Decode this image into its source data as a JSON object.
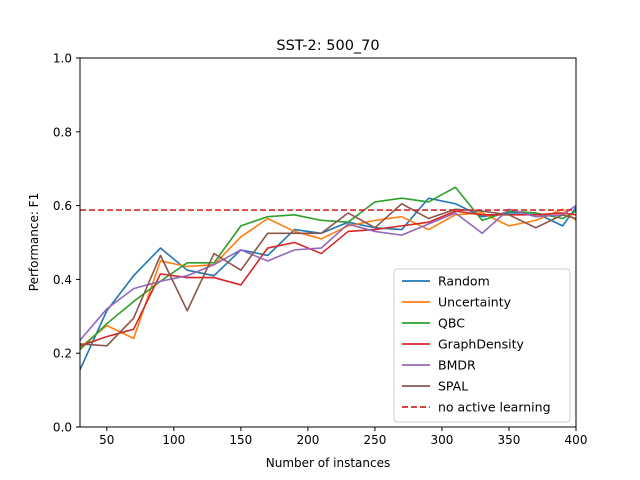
{
  "chart_data": {
    "type": "line",
    "title": "SST-2: 500_70",
    "xlabel": "Number of instances",
    "ylabel": "Performance: F1",
    "xlim": [
      30,
      400
    ],
    "ylim": [
      0.0,
      1.0
    ],
    "xticks": [
      50,
      100,
      150,
      200,
      250,
      300,
      350,
      400
    ],
    "yticks": [
      0.0,
      0.2,
      0.4,
      0.6,
      0.8,
      1.0
    ],
    "xtick_labels": [
      "50",
      "100",
      "150",
      "200",
      "250",
      "300",
      "350",
      "400"
    ],
    "ytick_labels": [
      "0.0",
      "0.2",
      "0.4",
      "0.6",
      "0.8",
      "1.0"
    ],
    "grid": false,
    "legend_position": "lower-right",
    "x": [
      30,
      50,
      70,
      90,
      110,
      130,
      150,
      170,
      190,
      210,
      230,
      250,
      270,
      290,
      310,
      330,
      350,
      370,
      390,
      400
    ],
    "series": [
      {
        "name": "Random",
        "color": "#1f77b4",
        "values": [
          0.155,
          0.315,
          0.41,
          0.485,
          0.425,
          0.41,
          0.48,
          0.465,
          0.535,
          0.525,
          0.555,
          0.54,
          0.535,
          0.62,
          0.605,
          0.57,
          0.58,
          0.58,
          0.545,
          0.595
        ]
      },
      {
        "name": "Uncertainty",
        "color": "#ff7f0e",
        "values": [
          0.215,
          0.275,
          0.24,
          0.45,
          0.435,
          0.44,
          0.515,
          0.565,
          0.53,
          0.51,
          0.545,
          0.56,
          0.57,
          0.535,
          0.575,
          0.58,
          0.545,
          0.56,
          0.59,
          0.56
        ]
      },
      {
        "name": "QBC",
        "color": "#2ca02c",
        "values": [
          0.21,
          0.28,
          0.34,
          0.395,
          0.445,
          0.445,
          0.545,
          0.57,
          0.575,
          0.56,
          0.555,
          0.61,
          0.62,
          0.61,
          0.65,
          0.56,
          0.585,
          0.58,
          0.565,
          0.585
        ]
      },
      {
        "name": "GraphDensity",
        "color": "#d62728",
        "values": [
          0.22,
          0.245,
          0.265,
          0.415,
          0.405,
          0.405,
          0.385,
          0.485,
          0.5,
          0.47,
          0.53,
          0.535,
          0.545,
          0.555,
          0.585,
          0.575,
          0.575,
          0.575,
          0.58,
          0.575
        ]
      },
      {
        "name": "BMDR",
        "color": "#9467bd",
        "values": [
          0.235,
          0.32,
          0.375,
          0.395,
          0.41,
          0.44,
          0.48,
          0.45,
          0.48,
          0.485,
          0.55,
          0.53,
          0.52,
          0.55,
          0.58,
          0.525,
          0.59,
          0.57,
          0.575,
          0.6
        ]
      },
      {
        "name": "SPAL",
        "color": "#8c564b",
        "values": [
          0.225,
          0.22,
          0.295,
          0.465,
          0.315,
          0.47,
          0.425,
          0.525,
          0.525,
          0.525,
          0.58,
          0.54,
          0.605,
          0.565,
          0.59,
          0.585,
          0.575,
          0.54,
          0.575,
          0.565
        ]
      }
    ],
    "reference_line": {
      "name": "no active learning",
      "color": "#d62728",
      "style": "dashed",
      "value": 0.588
    }
  }
}
